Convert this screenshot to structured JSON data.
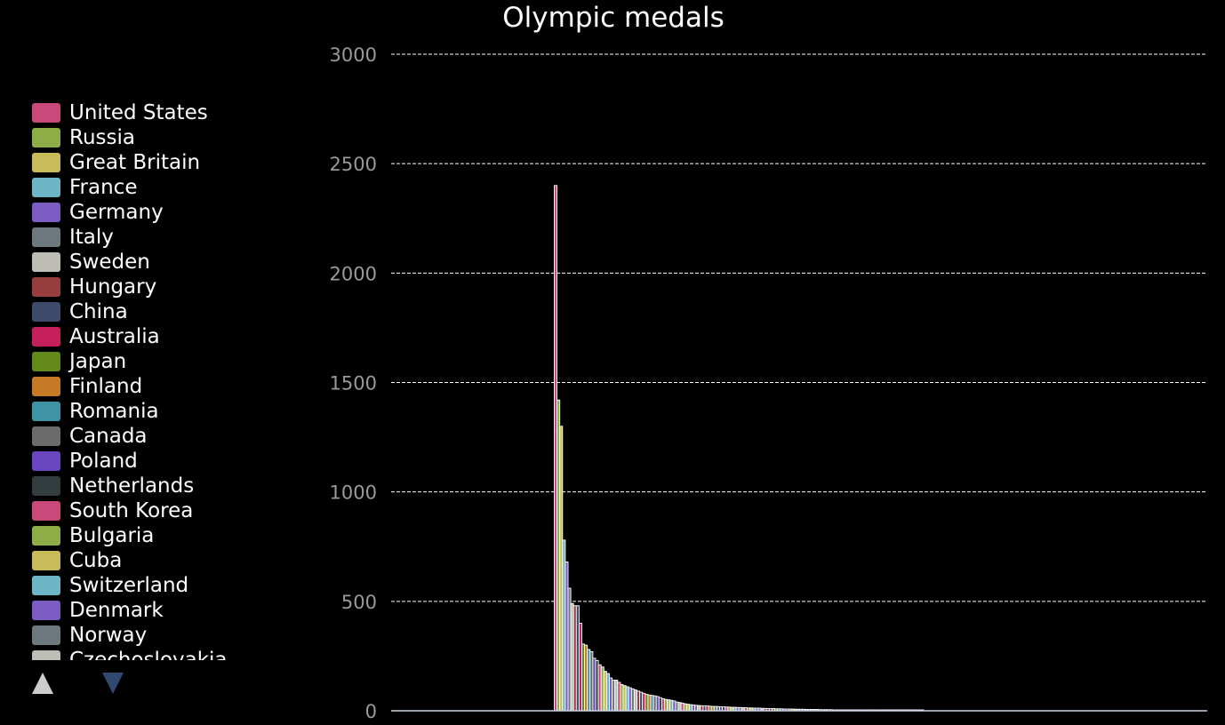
{
  "chart_data": {
    "type": "bar",
    "title": "Olympic medals",
    "xlabel": "",
    "ylabel": "",
    "ylim": [
      0,
      3000
    ],
    "yticks": [
      0,
      500,
      1000,
      1500,
      2000,
      2500,
      3000
    ],
    "grid": true,
    "legend_position": "left",
    "legend": [
      {
        "name": "United States",
        "color": "#c9497a"
      },
      {
        "name": "Russia",
        "color": "#8dae46"
      },
      {
        "name": "Great Britain",
        "color": "#c9bb5a"
      },
      {
        "name": "France",
        "color": "#6cb6c5"
      },
      {
        "name": "Germany",
        "color": "#7c5dc4"
      },
      {
        "name": "Italy",
        "color": "#6d787c"
      },
      {
        "name": "Sweden",
        "color": "#bdbdb6"
      },
      {
        "name": "Hungary",
        "color": "#963e3e"
      },
      {
        "name": "China",
        "color": "#3d4a6a"
      },
      {
        "name": "Australia",
        "color": "#c41f5a"
      },
      {
        "name": "Japan",
        "color": "#648a1c"
      },
      {
        "name": "Finland",
        "color": "#c67a25"
      },
      {
        "name": "Romania",
        "color": "#3f94a3"
      },
      {
        "name": "Canada",
        "color": "#6b6b6b"
      },
      {
        "name": "Poland",
        "color": "#6a45c0"
      },
      {
        "name": "Netherlands",
        "color": "#333d3f"
      },
      {
        "name": "South Korea",
        "color": "#c9497a"
      },
      {
        "name": "Bulgaria",
        "color": "#8dae46"
      },
      {
        "name": "Cuba",
        "color": "#c9bb5a"
      },
      {
        "name": "Switzerland",
        "color": "#6cb6c5"
      },
      {
        "name": "Denmark",
        "color": "#7c5dc4"
      },
      {
        "name": "Norway",
        "color": "#6d787c"
      },
      {
        "name": "Czechoslovakia",
        "color": "#bdbdb6"
      }
    ],
    "values": [
      2400,
      1420,
      1300,
      780,
      680,
      560,
      490,
      480,
      480,
      400,
      305,
      300,
      280,
      270,
      240,
      230,
      210,
      200,
      180,
      170,
      150,
      140,
      140,
      130,
      120,
      115,
      110,
      105,
      100,
      95,
      90,
      85,
      80,
      75,
      72,
      70,
      68,
      65,
      60,
      55,
      52,
      50,
      48,
      45,
      40,
      38,
      35,
      32,
      30,
      28,
      26,
      25,
      24,
      23,
      22,
      22,
      21,
      20,
      20,
      19,
      18,
      18,
      17,
      17,
      16,
      16,
      15,
      15,
      14,
      14,
      13,
      13,
      12,
      12,
      12,
      11,
      11,
      10,
      10,
      10,
      9,
      9,
      9,
      8,
      8,
      8,
      8,
      7,
      7,
      7,
      7,
      6,
      6,
      6,
      6,
      6,
      5,
      5,
      5,
      5,
      5,
      4,
      4,
      4,
      4,
      4,
      4,
      3,
      3,
      3,
      3,
      3,
      3,
      3,
      2,
      2,
      2,
      2,
      2,
      2,
      2,
      2,
      2,
      1,
      1,
      1,
      1,
      1,
      1,
      1,
      1,
      1,
      1,
      1
    ]
  }
}
